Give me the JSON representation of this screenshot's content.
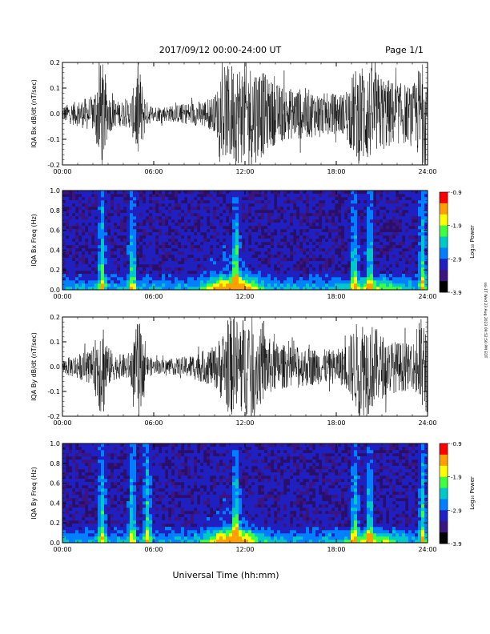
{
  "header": {
    "date_range": "2017/09/12  00:00-24:00 UT",
    "page": "Page 1/1"
  },
  "footer": {
    "xlabel": "Universal Time (hh:mm)"
  },
  "side_stamp": "ssi-1T Wed 23 Aug 2023 09:52:50 PM EDT",
  "colorbar": {
    "label": "Log₁₀ Power",
    "ticks": [
      "-0.9",
      "-1.9",
      "-2.9",
      "-3.9"
    ],
    "colors": [
      "#ff0000",
      "#ffa000",
      "#ffff00",
      "#40ff40",
      "#00c8c8",
      "#0080ff",
      "#2020c0",
      "#3a1480",
      "#000000"
    ]
  },
  "chart_data": [
    {
      "type": "line",
      "ylabel": "IQA Bx dB/dt (nT/sec)",
      "yticks": [
        "0.2",
        "0.1",
        "0.0",
        "-0.1",
        "-0.2"
      ],
      "ylim": [
        -0.2,
        0.2
      ],
      "xlim_hours": [
        0,
        24
      ],
      "xticks": [
        "00:00",
        "06:00",
        "12:00",
        "18:00",
        "24:00"
      ],
      "envelope": {
        "hours": [
          0,
          0.5,
          1,
          1.5,
          2,
          2.5,
          2.7,
          3,
          3.5,
          4,
          4.5,
          5,
          5.5,
          6,
          7,
          8,
          9,
          10,
          10.5,
          11,
          11.5,
          12,
          12.5,
          13,
          13.5,
          14,
          15,
          16,
          17,
          18,
          18.5,
          19,
          19.5,
          20,
          21,
          22,
          22.5,
          23,
          23.5,
          24
        ],
        "amplitude": [
          0.03,
          0.04,
          0.05,
          0.06,
          0.07,
          0.2,
          0.2,
          0.08,
          0.05,
          0.05,
          0.06,
          0.2,
          0.05,
          0.03,
          0.03,
          0.04,
          0.05,
          0.07,
          0.15,
          0.2,
          0.2,
          0.2,
          0.2,
          0.18,
          0.14,
          0.12,
          0.1,
          0.1,
          0.08,
          0.08,
          0.08,
          0.15,
          0.2,
          0.2,
          0.15,
          0.12,
          0.12,
          0.1,
          0.2,
          0.2
        ]
      }
    },
    {
      "type": "heatmap",
      "ylabel": "IQA Bx Freq (Hz)",
      "yticks": [
        "1.0",
        "0.8",
        "0.6",
        "0.4",
        "0.2",
        "0.0"
      ],
      "ylim": [
        0,
        1.0
      ],
      "xlim_hours": [
        0,
        24
      ],
      "xticks": [
        "00:00",
        "06:00",
        "12:00",
        "18:00",
        "24:00"
      ],
      "zlim": [
        -3.9,
        -0.9
      ],
      "enhanced_hours": [
        2.6,
        4.6,
        11.4,
        19.2,
        20.2,
        23.7
      ]
    },
    {
      "type": "line",
      "ylabel": "IQA By dB/dt (nT/sec)",
      "yticks": [
        "0.2",
        "0.1",
        "0.0",
        "-0.1",
        "-0.2"
      ],
      "ylim": [
        -0.2,
        0.2
      ],
      "xlim_hours": [
        0,
        24
      ],
      "xticks": [
        "00:00",
        "06:00",
        "12:00",
        "18:00",
        "24:00"
      ],
      "envelope": {
        "hours": [
          0,
          0.5,
          1,
          1.5,
          2,
          2.5,
          2.7,
          3,
          3.5,
          4,
          4.5,
          5,
          5.5,
          6,
          7,
          8,
          9,
          10,
          10.5,
          11,
          11.5,
          12,
          12.5,
          13,
          13.5,
          14,
          15,
          16,
          17,
          18,
          18.5,
          19,
          19.5,
          20,
          21,
          22,
          22.5,
          23,
          23.5,
          24
        ],
        "amplitude": [
          0.03,
          0.04,
          0.05,
          0.06,
          0.07,
          0.2,
          0.2,
          0.08,
          0.05,
          0.05,
          0.06,
          0.2,
          0.05,
          0.03,
          0.03,
          0.04,
          0.06,
          0.08,
          0.14,
          0.2,
          0.2,
          0.2,
          0.2,
          0.16,
          0.12,
          0.1,
          0.08,
          0.08,
          0.07,
          0.07,
          0.08,
          0.14,
          0.2,
          0.2,
          0.13,
          0.1,
          0.1,
          0.08,
          0.2,
          0.2
        ]
      }
    },
    {
      "type": "heatmap",
      "ylabel": "IQA By Freq (Hz)",
      "yticks": [
        "1.0",
        "0.8",
        "0.6",
        "0.4",
        "0.2",
        "0.0"
      ],
      "ylim": [
        0,
        1.0
      ],
      "xlim_hours": [
        0,
        24
      ],
      "xticks": [
        "00:00",
        "06:00",
        "12:00",
        "18:00",
        "24:00"
      ],
      "zlim": [
        -3.9,
        -0.9
      ],
      "enhanced_hours": [
        2.6,
        4.6,
        5.6,
        11.4,
        19.2,
        20.2,
        23.7
      ]
    }
  ]
}
